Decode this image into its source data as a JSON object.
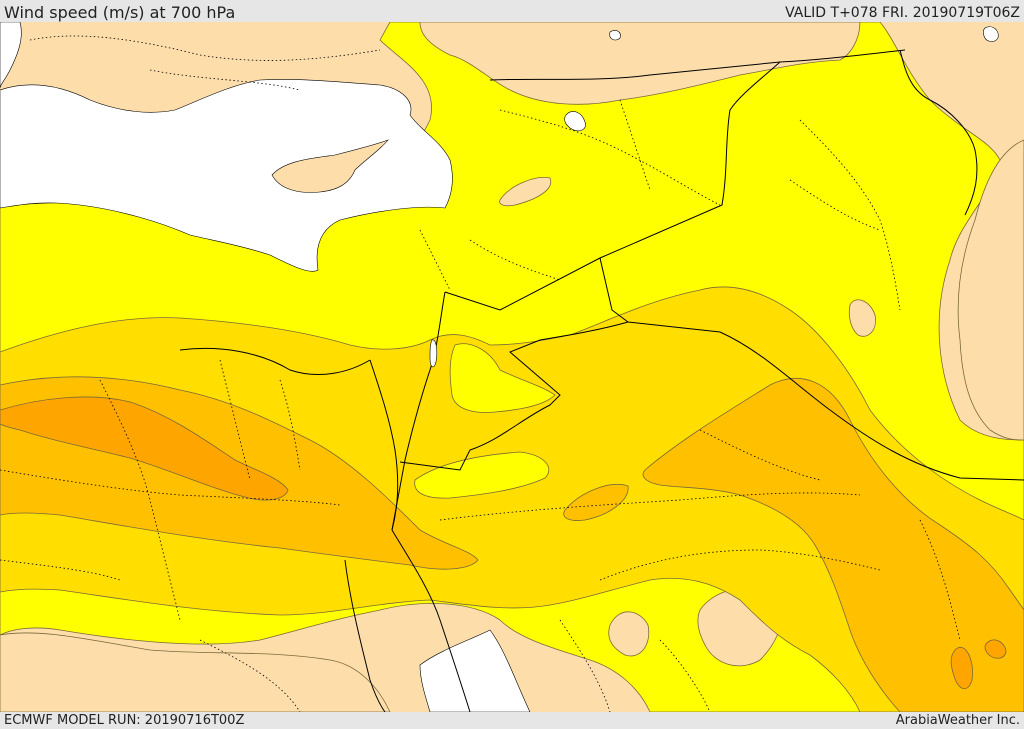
{
  "header": {
    "title": "Wind speed (m/s) at 700 hPa",
    "valid_time": "VALID T+078 FRI. 20190719T06Z"
  },
  "footer": {
    "model_run": "ECMWF MODEL RUN: 20190716T00Z",
    "credit": "ArabiaWeather Inc."
  },
  "map": {
    "colors": {
      "sea": "#ffffff",
      "band_1": "#fddeab",
      "band_2": "#ffff00",
      "band_3": "#ffde00",
      "band_4": "#ffc000",
      "band_5": "#ffa500",
      "contour": "#7a6a3a",
      "border": "#000000"
    }
  }
}
